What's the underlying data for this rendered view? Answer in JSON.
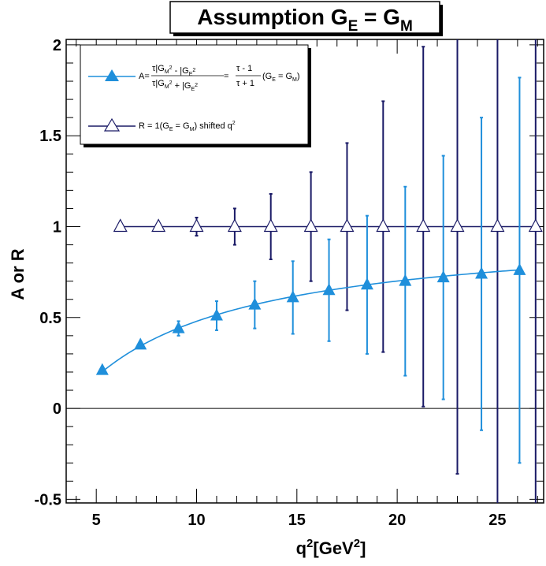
{
  "chart_data": {
    "type": "scatter",
    "title_main": "Assumption G",
    "title_sub1": "E",
    "title_eq": " = G",
    "title_sub2": "M",
    "xlabel_main": "q",
    "xlabel_sup": "2",
    "xlabel_unit": "[GeV",
    "xlabel_sup2": "2",
    "xlabel_close": "]",
    "ylabel": "A or R",
    "xlim": [
      3.5,
      27.3
    ],
    "ylim": [
      -0.52,
      2.03
    ],
    "x_ticks": [
      5,
      10,
      15,
      20,
      25
    ],
    "y_ticks": [
      -0.5,
      0,
      0.5,
      1,
      1.5,
      2
    ],
    "y_tick_labels": [
      "-0.5",
      "0",
      "0.5",
      "1",
      "1.5",
      "2"
    ],
    "zero_line": 0,
    "colors": {
      "series_A": "#1f8fdb",
      "series_R": "#1a1a66"
    },
    "legend": {
      "position": "top-left",
      "entry1": {
        "lhs": "A=",
        "num": "τ|G",
        "num_sub1": "M",
        "num_sup1": "2",
        "num_mid": " - |G",
        "num_sub2": "E",
        "num_sup2": "2",
        "den": "τ|G",
        "den_sub1": "M",
        "den_sup1": "2",
        "den_mid": " + |G",
        "den_sub2": "E",
        "den_sup2": "2",
        "eq": " = ",
        "frac2_num": "τ - 1",
        "frac2_den": "τ + 1",
        "cond_open": "(G",
        "cond_sub1": "E",
        "cond_mid": " = G",
        "cond_sub2": "M",
        "cond_close": ")"
      },
      "entry2": {
        "text1": "R = 1(G",
        "sub1": "E",
        "text2": " = G",
        "sub2": "M",
        "text3": ") shifted q",
        "sup": "2"
      }
    },
    "series": [
      {
        "id": "A",
        "marker": "filled-triangle",
        "curve": "tau_ratio",
        "curve_x_range": [
          5.3,
          26.1
        ],
        "x": [
          5.3,
          7.2,
          9.1,
          11.0,
          12.9,
          14.8,
          16.6,
          18.5,
          20.4,
          22.3,
          24.2,
          26.1
        ],
        "y": [
          0.21,
          0.35,
          0.44,
          0.51,
          0.57,
          0.61,
          0.65,
          0.68,
          0.7,
          0.72,
          0.74,
          0.76
        ],
        "err": [
          0.0,
          0.0,
          0.04,
          0.08,
          0.13,
          0.2,
          0.28,
          0.38,
          0.52,
          0.67,
          0.86,
          1.06
        ]
      },
      {
        "id": "R",
        "marker": "open-triangle",
        "curve": "constant",
        "curve_x_range": [
          6.2,
          26.9
        ],
        "x": [
          6.2,
          8.1,
          10.0,
          11.9,
          13.7,
          15.7,
          17.5,
          19.3,
          21.3,
          23.0,
          25.0,
          26.9
        ],
        "y": [
          1.0,
          1.0,
          1.0,
          1.0,
          1.0,
          1.0,
          1.0,
          1.0,
          1.0,
          1.0,
          1.0,
          1.0
        ],
        "err": [
          0.0,
          0.0,
          0.05,
          0.1,
          0.18,
          0.3,
          0.46,
          0.69,
          0.99,
          1.36,
          1.86,
          2.4
        ]
      }
    ]
  }
}
